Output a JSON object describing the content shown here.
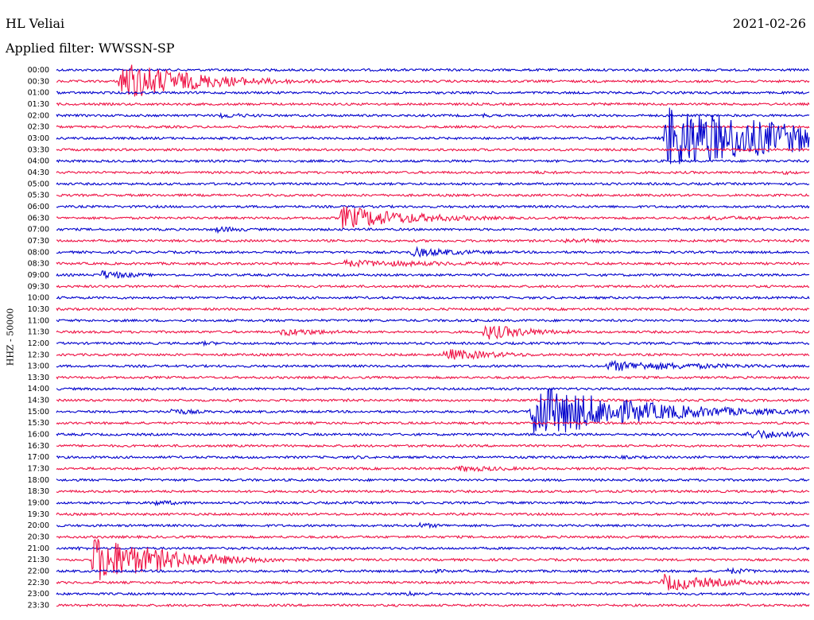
{
  "header": {
    "station": "HL Veliai",
    "date": "2021-02-26",
    "filter": "Applied filter: WWSSN-SP"
  },
  "chart_data": {
    "type": "line",
    "ylabel": "HHZ - 50000",
    "tick_labels": [
      "00:00",
      "00:30",
      "01:00",
      "01:30",
      "02:00",
      "02:30",
      "03:00",
      "03:30",
      "04:00",
      "04:30",
      "05:00",
      "05:30",
      "06:00",
      "06:30",
      "07:00",
      "07:30",
      "08:00",
      "08:30",
      "09:00",
      "09:30",
      "10:00",
      "10:30",
      "11:00",
      "11:30",
      "12:00",
      "12:30",
      "13:00",
      "13:30",
      "14:00",
      "14:30",
      "15:00",
      "15:30",
      "16:00",
      "16:30",
      "17:00",
      "17:30",
      "18:00",
      "18:30",
      "19:00",
      "19:30",
      "20:00",
      "20:30",
      "21:00",
      "21:30",
      "22:00",
      "22:30",
      "23:00",
      "23:30"
    ],
    "trace_colors": [
      "#0000cc",
      "#ee1144"
    ],
    "trace_minutes": 30,
    "events": [
      {
        "row": 1,
        "minute": 2.6,
        "amp": 5,
        "dur": 3.0,
        "color": "#ee1144"
      },
      {
        "row": 4,
        "minute": 6.5,
        "amp": 0.7,
        "dur": 2.0,
        "color": "#0000cc"
      },
      {
        "row": 4,
        "minute": 17.0,
        "amp": 0.6,
        "dur": 0.5,
        "color": "#0000cc"
      },
      {
        "row": 6,
        "minute": 24.3,
        "amp": 8,
        "dur": 6.0,
        "color": "#0000cc"
      },
      {
        "row": 7,
        "minute": 12.1,
        "amp": 0.3,
        "dur": 1.5,
        "color": "#ee1144"
      },
      {
        "row": 6,
        "minute": 30.0,
        "amp": 0.8,
        "dur": 1.5,
        "color": "#0000cc"
      },
      {
        "row": 9,
        "minute": 10.0,
        "amp": 0.3,
        "dur": 2.0,
        "color": "#ee1144"
      },
      {
        "row": 9,
        "minute": 19.0,
        "amp": 0.4,
        "dur": 4.0,
        "color": "#ee1144"
      },
      {
        "row": 9,
        "minute": 29.0,
        "amp": 0.5,
        "dur": 1.5,
        "color": "#ee1144"
      },
      {
        "row": 12,
        "minute": 31.0,
        "amp": 0.8,
        "dur": 3.0,
        "color": "#0000cc"
      },
      {
        "row": 13,
        "minute": 11.4,
        "amp": 3,
        "dur": 3.0,
        "color": "#ee1144"
      },
      {
        "row": 13,
        "minute": 26.0,
        "amp": 0.5,
        "dur": 8.0,
        "color": "#ee1144"
      },
      {
        "row": 14,
        "minute": 6.4,
        "amp": 0.8,
        "dur": 1.5,
        "color": "#0000cc"
      },
      {
        "row": 15,
        "minute": 20.2,
        "amp": 0.6,
        "dur": 3.0,
        "color": "#0000cc"
      },
      {
        "row": 16,
        "minute": 14.2,
        "amp": 1.2,
        "dur": 2.5,
        "color": "#0000cc"
      },
      {
        "row": 17,
        "minute": 11.5,
        "amp": 0.9,
        "dur": 6.0,
        "color": "#ee1144"
      },
      {
        "row": 18,
        "minute": 1.8,
        "amp": 1.2,
        "dur": 1.5,
        "color": "#0000cc"
      },
      {
        "row": 21,
        "minute": 25.0,
        "amp": 0.3,
        "dur": 2.0,
        "color": "#ee1144"
      },
      {
        "row": 21,
        "minute": 31.0,
        "amp": 0.5,
        "dur": 1.5,
        "color": "#ee1144"
      },
      {
        "row": 23,
        "minute": 9.0,
        "amp": 1.0,
        "dur": 2.5,
        "color": "#ee1144"
      },
      {
        "row": 23,
        "minute": 17.1,
        "amp": 2.0,
        "dur": 2.0,
        "color": "#ee1144"
      },
      {
        "row": 24,
        "minute": 5.8,
        "amp": 0.5,
        "dur": 2.0,
        "color": "#0000cc"
      },
      {
        "row": 25,
        "minute": 15.5,
        "amp": 1.5,
        "dur": 2.5,
        "color": "#ee1144"
      },
      {
        "row": 25,
        "minute": 31.0,
        "amp": 0.5,
        "dur": 1.5,
        "color": "#ee1144"
      },
      {
        "row": 26,
        "minute": 22.0,
        "amp": 1.3,
        "dur": 5.0,
        "color": "#0000cc"
      },
      {
        "row": 28,
        "minute": 8.5,
        "amp": 0.3,
        "dur": 1.5,
        "color": "#0000cc"
      },
      {
        "row": 30,
        "minute": 4.5,
        "amp": 0.9,
        "dur": 1.5,
        "color": "#0000cc"
      },
      {
        "row": 30,
        "minute": 19.0,
        "amp": 7,
        "dur": 4.0,
        "color": "#ee1144"
      },
      {
        "row": 32,
        "minute": 27.6,
        "amp": 1.3,
        "dur": 2.5,
        "color": "#0000cc"
      },
      {
        "row": 34,
        "minute": 11.9,
        "amp": 0.5,
        "dur": 0.8,
        "color": "#0000cc"
      },
      {
        "row": 34,
        "minute": 22.5,
        "amp": 0.4,
        "dur": 4.0,
        "color": "#0000cc"
      },
      {
        "row": 35,
        "minute": 16.0,
        "amp": 0.8,
        "dur": 3.0,
        "color": "#ee1144"
      },
      {
        "row": 38,
        "minute": 3.8,
        "amp": 0.7,
        "dur": 2.0,
        "color": "#0000cc"
      },
      {
        "row": 40,
        "minute": 14.4,
        "amp": 0.7,
        "dur": 1.5,
        "color": "#0000cc"
      },
      {
        "row": 42,
        "minute": 0.8,
        "amp": 0.5,
        "dur": 1.0,
        "color": "#0000cc"
      },
      {
        "row": 43,
        "minute": 1.5,
        "amp": 6,
        "dur": 3.0,
        "color": "#ee1144"
      },
      {
        "row": 44,
        "minute": 14.5,
        "amp": 0.6,
        "dur": 2.0,
        "color": "#0000cc"
      },
      {
        "row": 44,
        "minute": 26.8,
        "amp": 0.8,
        "dur": 1.5,
        "color": "#0000cc"
      },
      {
        "row": 45,
        "minute": 24.2,
        "amp": 2.2,
        "dur": 2.5,
        "color": "#ee1144"
      },
      {
        "row": 46,
        "minute": 14.0,
        "amp": 0.6,
        "dur": 2.0,
        "color": "#0000cc"
      },
      {
        "row": 46,
        "minute": 19.1,
        "amp": 0.4,
        "dur": 0.8,
        "color": "#0000cc"
      }
    ]
  }
}
